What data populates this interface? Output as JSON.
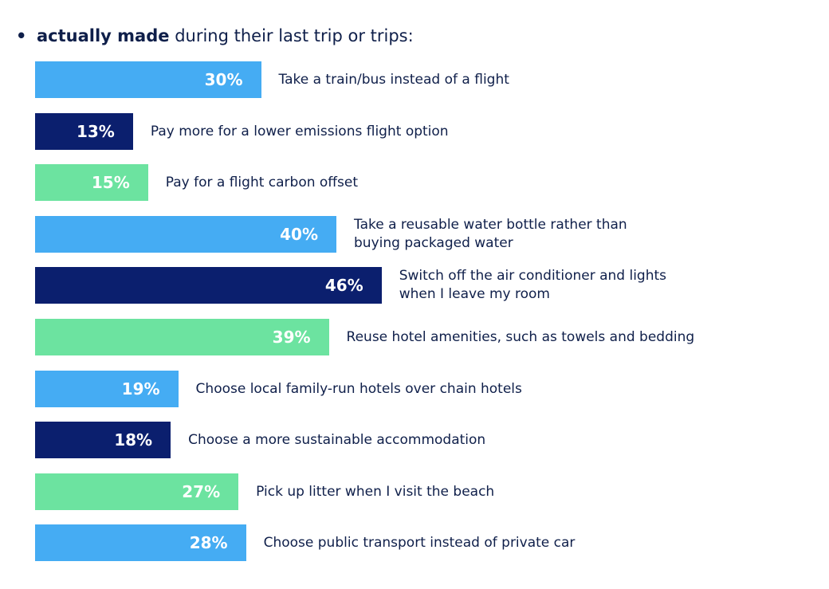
{
  "heading": {
    "bullet": "•",
    "bold_text": "actually made",
    "rest_text": " during their last trip or trips:"
  },
  "colors": {
    "light_blue": "#45acf3",
    "navy": "#0b1f6e",
    "green": "#6ce3a0"
  },
  "chart_data": {
    "type": "bar",
    "orientation": "horizontal",
    "title": "",
    "xlabel": "",
    "ylabel": "",
    "xlim": [
      0,
      100
    ],
    "grid": false,
    "categories": [
      "Take a train/bus instead of a flight",
      "Pay more for a lower emissions flight option",
      "Pay for a flight carbon offset",
      "Take a reusable water bottle rather than buying packaged water",
      "Switch off the air conditioner and lights when I leave my room",
      "Reuse hotel amenities, such as towels and bedding",
      "Choose local family-run hotels over chain hotels",
      "Choose a more sustainable accommodation",
      "Pick up litter when I visit the beach",
      "Choose public transport instead of private car"
    ],
    "values": [
      30,
      13,
      15,
      40,
      46,
      39,
      19,
      18,
      27,
      28
    ],
    "value_labels": [
      "30%",
      "13%",
      "15%",
      "40%",
      "46%",
      "39%",
      "19%",
      "18%",
      "27%",
      "28%"
    ],
    "label_lines": [
      [
        "Take a train/bus instead of a flight"
      ],
      [
        "Pay more for a lower emissions flight option"
      ],
      [
        "Pay for a flight carbon offset"
      ],
      [
        "Take a reusable water bottle rather than",
        "buying packaged water"
      ],
      [
        "Switch off the air conditioner and lights",
        "when I leave my room"
      ],
      [
        "Reuse hotel amenities, such as towels and bedding"
      ],
      [
        "Choose local family-run hotels over chain hotels"
      ],
      [
        "Choose a more sustainable accommodation"
      ],
      [
        "Pick up litter when I visit the beach"
      ],
      [
        "Choose public transport instead of private car"
      ]
    ],
    "bar_colors": [
      "#45acf3",
      "#0b1f6e",
      "#6ce3a0",
      "#45acf3",
      "#0b1f6e",
      "#6ce3a0",
      "#45acf3",
      "#0b1f6e",
      "#6ce3a0",
      "#45acf3"
    ]
  }
}
